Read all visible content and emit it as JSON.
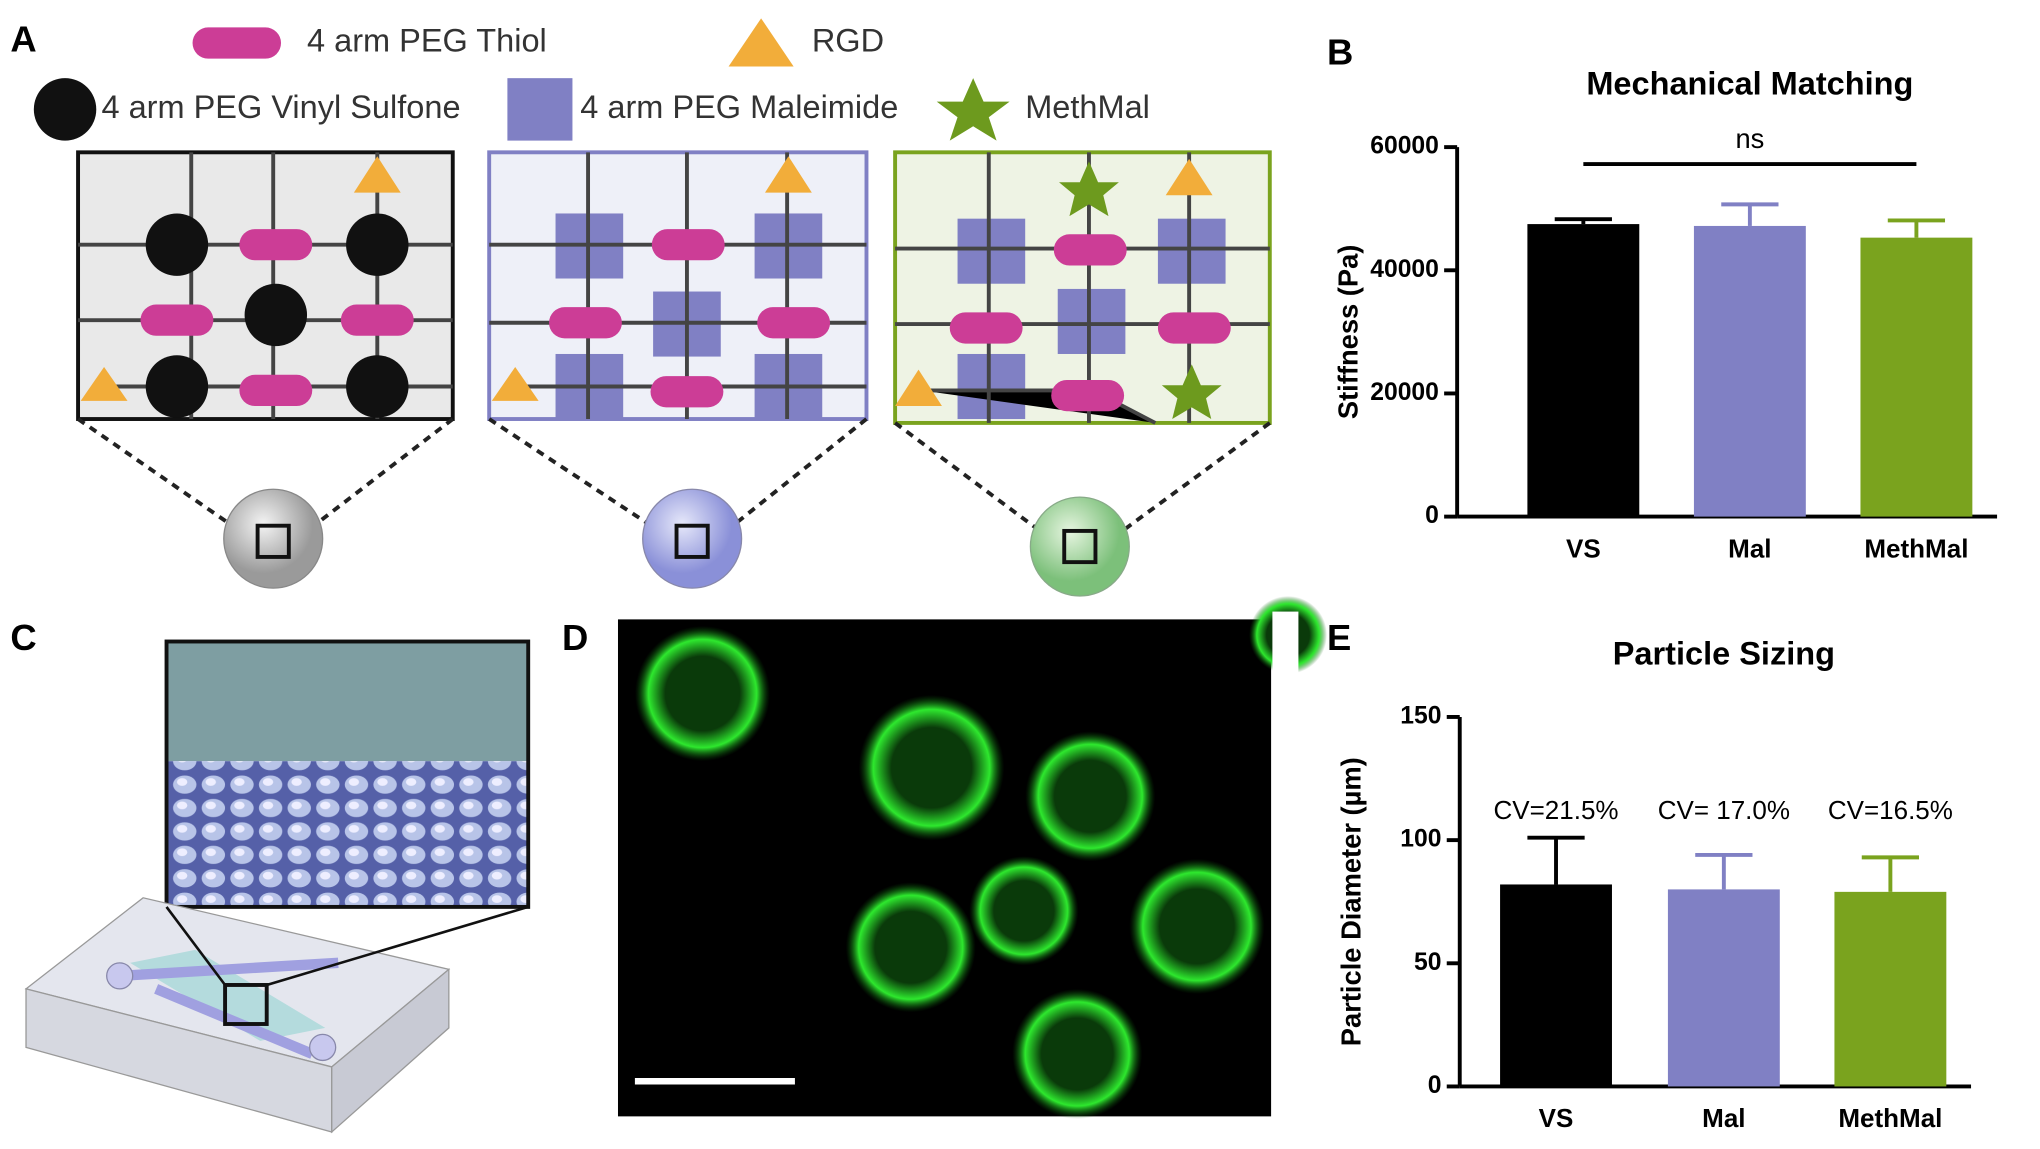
{
  "panel_labels": [
    "A",
    "B",
    "C",
    "D",
    "E"
  ],
  "legend": [
    "4 arm PEG Thiol",
    "RGD",
    "4 arm PEG Vinyl Sulfone",
    "4 arm PEG Maleimide",
    "MethMal"
  ],
  "chart_data": [
    {
      "type": "bar",
      "title": "Mechanical Matching",
      "y_label": "Stiffness (Pa)",
      "categories": [
        "VS",
        "Mal",
        "MethMal"
      ],
      "values": [
        47500,
        47200,
        45300
      ],
      "errors": [
        800,
        3500,
        2800
      ],
      "colors": [
        "#000000",
        "#8080c4",
        "#7aa31e"
      ],
      "ylim": [
        0,
        60000
      ],
      "yticks": [
        0,
        20000,
        40000,
        60000
      ],
      "annotation": "ns"
    },
    {
      "type": "bar",
      "title": "Particle Sizing",
      "y_label": "Particle Diameter (µm)",
      "categories": [
        "VS",
        "Mal",
        "MethMal"
      ],
      "values": [
        82,
        80,
        79
      ],
      "errors": [
        19,
        14,
        14
      ],
      "colors": [
        "#000000",
        "#8080c4",
        "#7aa31e"
      ],
      "ylim": [
        0,
        150
      ],
      "yticks": [
        0,
        50,
        100,
        150
      ],
      "annotations": [
        "CV=21.5%",
        "CV= 17.0%",
        "CV=16.5%"
      ]
    }
  ]
}
